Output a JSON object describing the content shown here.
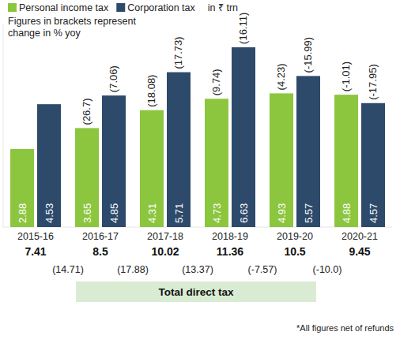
{
  "chart_data": {
    "type": "bar",
    "unit_label": "in ₹ trn",
    "subtitle": "Figures in brackets represent change in % yoy",
    "categories": [
      "2015-16",
      "2016-17",
      "2017-18",
      "2018-19",
      "2019-20",
      "2020-21"
    ],
    "series": [
      {
        "name": "Personal income tax",
        "color": "#8cc63f",
        "values": [
          2.88,
          3.65,
          4.31,
          4.73,
          4.93,
          4.88
        ],
        "yoy_change": [
          null,
          26.7,
          18.08,
          9.74,
          4.23,
          -1.01
        ],
        "yoy_change_labels": [
          null,
          "(26.7)",
          "(18.08)",
          "(9.74)",
          "(4.23)",
          "(-1.01)"
        ]
      },
      {
        "name": "Corporation tax",
        "color": "#2e4a6b",
        "values": [
          4.53,
          4.85,
          5.71,
          6.63,
          5.57,
          4.57
        ],
        "yoy_change": [
          null,
          7.06,
          17.73,
          16.11,
          -15.99,
          -17.95
        ],
        "yoy_change_labels": [
          null,
          "(7.06)",
          "(17.73)",
          "(16.11)",
          "(-15.99)",
          "(-17.95)"
        ]
      }
    ],
    "total_direct_tax": {
      "label": "Total direct tax",
      "values": [
        7.41,
        8.5,
        10.02,
        11.36,
        10.5,
        9.45
      ],
      "changes": [
        14.71,
        17.88,
        13.37,
        -7.57,
        -10.0
      ],
      "change_labels": [
        "(14.71)",
        "(17.88)",
        "(13.37)",
        "(-7.57)",
        "(-10.0)"
      ]
    },
    "footnote": "*All figures net of refunds",
    "ylim": [
      0,
      7.5
    ],
    "tick_labels": false,
    "data_labels": true,
    "grid": false,
    "legend": "top-left"
  }
}
